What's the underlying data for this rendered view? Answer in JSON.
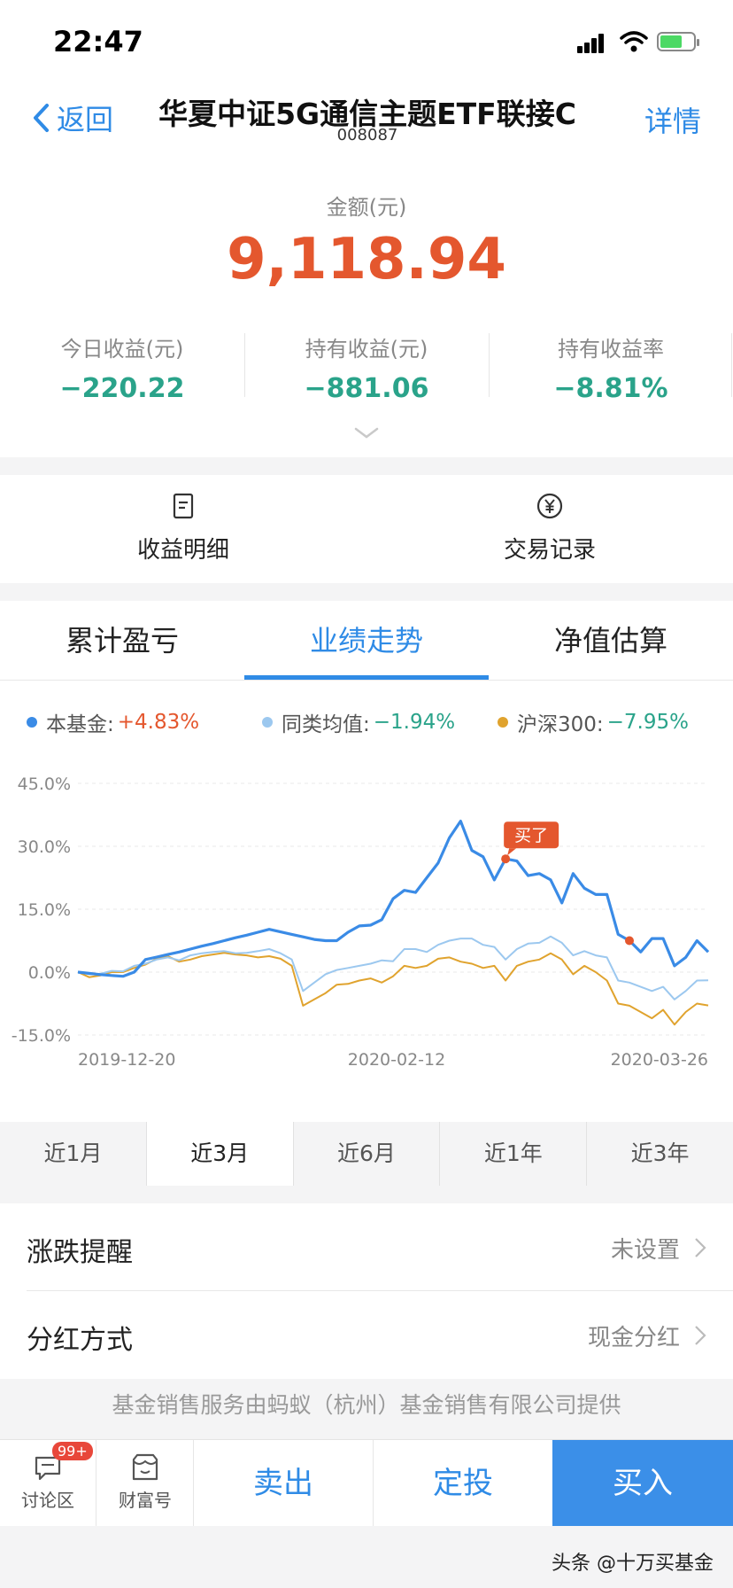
{
  "status_bar": {
    "time": "22:47"
  },
  "header": {
    "back_label": "返回",
    "title": "华夏中证5G通信主题ETF联接C",
    "code": "008087",
    "detail_label": "详情"
  },
  "summary": {
    "amount_label": "金额(元)",
    "amount_value": "9,118.94",
    "stats": [
      {
        "label": "今日收益(元)",
        "value": "−220.22"
      },
      {
        "label": "持有收益(元)",
        "value": "−881.06"
      },
      {
        "label": "持有收益率",
        "value": "−8.81%"
      }
    ]
  },
  "actions": [
    {
      "label": "收益明细",
      "icon": "document-icon"
    },
    {
      "label": "交易记录",
      "icon": "yen-circle-icon"
    }
  ],
  "tabs": [
    {
      "label": "累计盈亏",
      "active": false
    },
    {
      "label": "业绩走势",
      "active": true
    },
    {
      "label": "净值估算",
      "active": false
    }
  ],
  "legend": [
    {
      "name": "本基金:",
      "value": "+4.83%",
      "color": "#3a8be6",
      "value_color": "#e4572e"
    },
    {
      "name": "同类均值:",
      "value": "−1.94%",
      "color": "#9cc8ef",
      "value_color": "#2aa38a"
    },
    {
      "name": "沪深300:",
      "value": "−7.95%",
      "color": "#e0a32e",
      "value_color": "#2aa38a"
    }
  ],
  "chart_data": {
    "type": "line",
    "y_ticks": [
      "45.0%",
      "30.0%",
      "15.0%",
      "0.0%",
      "-15.0%"
    ],
    "ylim": [
      -15,
      45
    ],
    "x_tick_labels": [
      "2019-12-20",
      "2020-02-12",
      "2020-03-26"
    ],
    "grid": true,
    "annotation": {
      "label": "买了",
      "x_index": 38,
      "series": "本基金"
    },
    "marker": {
      "x_index": 49,
      "series": "本基金"
    },
    "series": [
      {
        "name": "本基金",
        "color": "#3a8be6",
        "values": [
          0,
          -0.3,
          -0.6,
          -0.8,
          -1.0,
          0,
          3.0,
          3.6,
          4.2,
          4.8,
          5.5,
          6.2,
          6.8,
          7.5,
          8.2,
          8.8,
          9.5,
          10.2,
          9.6,
          9.0,
          8.4,
          7.8,
          7.5,
          7.5,
          9.5,
          11.0,
          11.2,
          12.5,
          17.5,
          19.5,
          19.0,
          22.5,
          26.0,
          32.0,
          36.0,
          29.0,
          27.5,
          22.0,
          27.0,
          26.5,
          23.0,
          23.5,
          22.0,
          16.5,
          23.5,
          20.0,
          18.5,
          18.5,
          9.0,
          7.5,
          4.8,
          8.0,
          8.0,
          1.5,
          3.5,
          7.5,
          4.8
        ]
      },
      {
        "name": "同类均值",
        "color": "#9cc8ef",
        "values": [
          0,
          -0.5,
          -0.4,
          0.3,
          0.2,
          1.5,
          2.0,
          3.0,
          3.5,
          2.8,
          4.0,
          4.5,
          4.8,
          5.0,
          4.5,
          4.6,
          5.0,
          5.5,
          4.5,
          3.0,
          -4.5,
          -2.5,
          -0.5,
          0.5,
          1.0,
          1.5,
          2.0,
          2.8,
          2.6,
          5.5,
          5.5,
          4.8,
          6.5,
          7.5,
          8.0,
          8.0,
          6.5,
          6.0,
          3.0,
          5.5,
          6.8,
          7.0,
          8.5,
          7.0,
          4.0,
          5.0,
          4.0,
          3.5,
          -2.0,
          -2.5,
          -3.5,
          -4.5,
          -3.5,
          -6.5,
          -4.5,
          -2.0,
          -1.94
        ]
      },
      {
        "name": "沪深300",
        "color": "#e0a32e",
        "values": [
          0,
          -1.2,
          -0.8,
          0,
          0,
          1.0,
          1.8,
          3.2,
          3.8,
          2.5,
          3.0,
          3.8,
          4.2,
          4.6,
          4.2,
          4.0,
          3.5,
          3.8,
          3.2,
          1.5,
          -8.0,
          -6.5,
          -5.0,
          -3.0,
          -2.8,
          -2.0,
          -1.5,
          -2.5,
          -1.0,
          1.5,
          1.0,
          1.5,
          3.2,
          3.5,
          2.5,
          2.0,
          1.0,
          1.5,
          -2.0,
          1.5,
          2.5,
          3.0,
          4.5,
          3.0,
          -0.5,
          1.5,
          0,
          -2.0,
          -7.5,
          -8.0,
          -9.5,
          -11.0,
          -9.0,
          -12.5,
          -9.5,
          -7.5,
          -7.95
        ]
      }
    ]
  },
  "ranges": [
    {
      "label": "近1月",
      "active": false
    },
    {
      "label": "近3月",
      "active": true
    },
    {
      "label": "近6月",
      "active": false
    },
    {
      "label": "近1年",
      "active": false
    },
    {
      "label": "近3年",
      "active": false
    }
  ],
  "settings": [
    {
      "label": "涨跌提醒",
      "value": "未设置"
    },
    {
      "label": "分红方式",
      "value": "现金分红"
    }
  ],
  "note": "基金销售服务由蚂蚁（杭州）基金销售有限公司提供",
  "bottom": {
    "discuss_label": "讨论区",
    "discuss_badge": "99+",
    "wealth_label": "财富号",
    "sell_label": "卖出",
    "auto_label": "定投",
    "buy_label": "买入"
  },
  "watermark": "头条 @十万买基金"
}
